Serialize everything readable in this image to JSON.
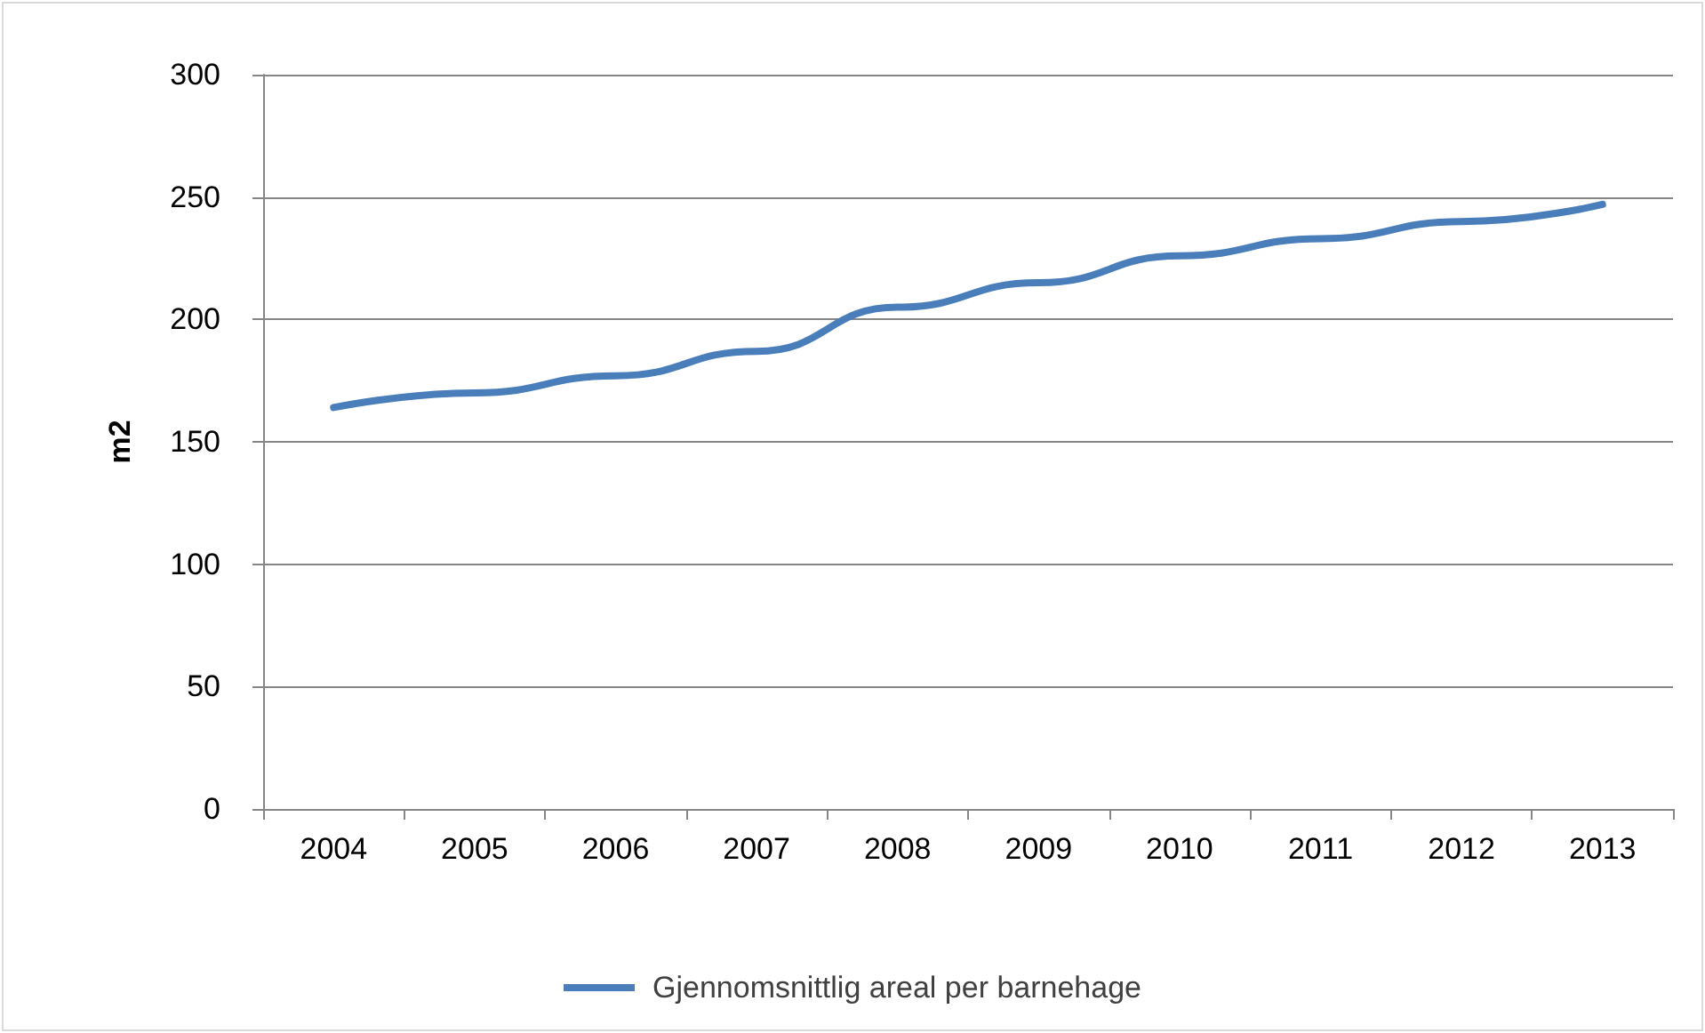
{
  "chart_data": {
    "type": "line",
    "ylabel": "m2",
    "categories": [
      "2004",
      "2005",
      "2006",
      "2007",
      "2008",
      "2009",
      "2010",
      "2011",
      "2012",
      "2013"
    ],
    "series": [
      {
        "name": "Gjennomsnittlig areal per barnehage",
        "color": "#4a7ebb",
        "values": [
          164,
          170,
          177,
          187,
          205,
          215,
          226,
          233,
          240,
          247
        ]
      }
    ],
    "ylim": [
      0,
      300
    ],
    "yticks": [
      0,
      50,
      100,
      150,
      200,
      250,
      300
    ],
    "grid": "y",
    "legend": "bottom",
    "marker": "none",
    "line_style": "solid"
  }
}
